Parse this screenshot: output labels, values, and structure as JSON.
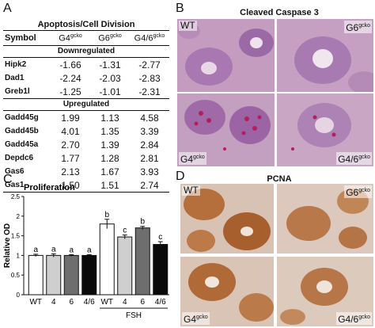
{
  "panels": {
    "a": "A",
    "b": "B",
    "c": "C",
    "d": "D"
  },
  "table": {
    "title": "Apoptosis/Cell Division",
    "headers": [
      "Symbol",
      "G4",
      "G6",
      "G4/6"
    ],
    "header_sup": "gcko",
    "sections": [
      {
        "label": "Downregulated",
        "rows": [
          {
            "symbol": "Hipk2",
            "values": [
              "-1.66",
              "-1.31",
              "-2.77"
            ]
          },
          {
            "symbol": "Dad1",
            "values": [
              "-2.24",
              "-2.03",
              "-2.83"
            ]
          },
          {
            "symbol": "Greb1l",
            "values": [
              "-1.25",
              "-1.01",
              "-2.31"
            ]
          }
        ]
      },
      {
        "label": "Upregulated",
        "rows": [
          {
            "symbol": "Gadd45g",
            "values": [
              "1.99",
              "1.13",
              "4.58"
            ]
          },
          {
            "symbol": "Gadd45b",
            "values": [
              "4.01",
              "1.35",
              "3.39"
            ]
          },
          {
            "symbol": "Gadd45a",
            "values": [
              "2.70",
              "1.39",
              "2.84"
            ]
          },
          {
            "symbol": "Depdc6",
            "values": [
              "1.77",
              "1.28",
              "2.81"
            ]
          },
          {
            "symbol": "Gas6",
            "values": [
              "2.13",
              "1.67",
              "3.93"
            ]
          },
          {
            "symbol": "Gas1",
            "values": [
              "1.50",
              "1.51",
              "2.74"
            ]
          }
        ]
      }
    ]
  },
  "panel_b": {
    "title": "Cleaved Caspase 3",
    "labels": [
      "WT",
      "G6",
      "G4",
      "G4/6"
    ],
    "sup": "gcko"
  },
  "panel_d": {
    "title": "PCNA",
    "labels": [
      "WT",
      "G6",
      "G4",
      "G4/6"
    ],
    "sup": "gcko"
  },
  "chart_data": {
    "type": "bar",
    "title": "Proliferation",
    "ylabel": "Relative OD",
    "xlabel": "",
    "ylim": [
      0,
      2.5
    ],
    "yticks": [
      "0",
      "0.5",
      "1",
      "1.5",
      "2",
      "2.5"
    ],
    "categories": [
      "WT",
      "4",
      "6",
      "4/6",
      "WT",
      "4",
      "6",
      "4/6"
    ],
    "values": [
      1.0,
      1.0,
      1.0,
      1.0,
      1.8,
      1.47,
      1.7,
      1.28
    ],
    "errors": [
      0.03,
      0.04,
      0.02,
      0.02,
      0.12,
      0.05,
      0.04,
      0.07
    ],
    "letters": [
      "a",
      "a",
      "a",
      "a",
      "b",
      "c",
      "b",
      "c"
    ],
    "colors": [
      "#ffffff",
      "#cfcfcf",
      "#6e6e6e",
      "#0a0a0a",
      "#ffffff",
      "#cfcfcf",
      "#6e6e6e",
      "#0a0a0a"
    ],
    "group_label": "FSH"
  }
}
